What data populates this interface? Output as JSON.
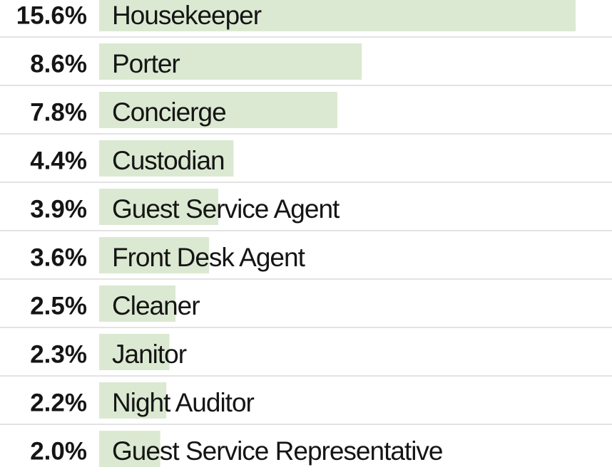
{
  "chart_data": {
    "type": "bar",
    "categories": [
      "Housekeeper",
      "Porter",
      "Concierge",
      "Custodian",
      "Guest Service Agent",
      "Front Desk Agent",
      "Cleaner",
      "Janitor",
      "Night Auditor",
      "Guest Service Representative"
    ],
    "values": [
      15.6,
      8.6,
      7.8,
      4.4,
      3.9,
      3.6,
      2.5,
      2.3,
      2.2,
      2.0
    ],
    "value_labels": [
      "15.6%",
      "8.6%",
      "7.8%",
      "4.4%",
      "3.9%",
      "3.6%",
      "2.5%",
      "2.3%",
      "2.2%",
      "2.0%"
    ],
    "color": "#dce9d2"
  }
}
